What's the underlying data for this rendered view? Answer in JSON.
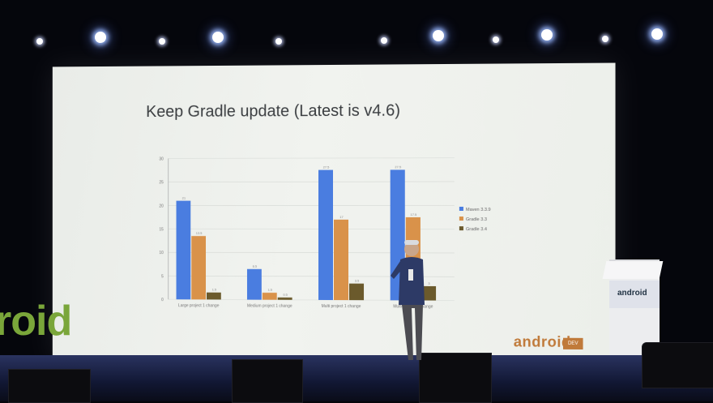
{
  "slide": {
    "title": "Keep Gradle update (Latest is v4.6)",
    "logo_text": "android",
    "logo_badge": "DEV"
  },
  "wall_logo": "roid",
  "podium_text": "android",
  "colors": {
    "maven": "#4a7de0",
    "gradle33": "#d9924a",
    "gradle34": "#6b5a2c",
    "screen": "#eef0ec",
    "background": "#05060c"
  },
  "chart_data": {
    "type": "bar",
    "ylim": [
      0,
      30
    ],
    "yticks": [
      0,
      5,
      10,
      15,
      20,
      25,
      30
    ],
    "categories": [
      "Large project 1 change",
      "Medium project 1 change",
      "Multi project 1 change",
      "Multi project 1 change"
    ],
    "series": [
      {
        "name": "Maven 3.3.9",
        "values": [
          21,
          6.5,
          27.5,
          27.5
        ]
      },
      {
        "name": "Gradle 3.3",
        "values": [
          13.5,
          1.5,
          17,
          17.5
        ]
      },
      {
        "name": "Gradle 3.4",
        "values": [
          1.5,
          0.5,
          3.5,
          3
        ]
      }
    ],
    "legend_position": "right"
  }
}
